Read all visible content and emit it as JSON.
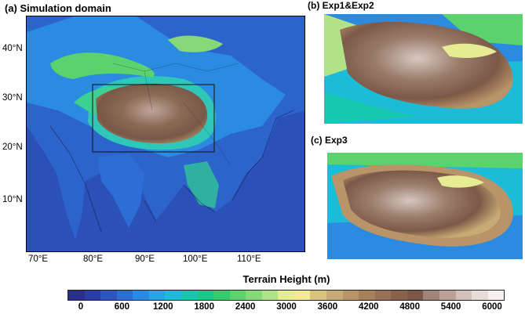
{
  "panels": {
    "a": {
      "title": "(a) Simulation domain",
      "lat_labels": [
        "40°N",
        "30°N",
        "20°N",
        "10°N"
      ],
      "lon_labels": [
        "70°E",
        "80°E",
        "90°E",
        "100°E",
        "110°E"
      ]
    },
    "b": {
      "title": "(b) Exp1&Exp2"
    },
    "c": {
      "title": "(c) Exp3"
    }
  },
  "colorbar": {
    "title": "Terrain Height (m)",
    "tick_labels": [
      "0",
      "600",
      "1200",
      "1800",
      "2400",
      "3000",
      "3600",
      "4200",
      "4800",
      "5400",
      "6000"
    ],
    "colors": [
      "#2a2e8c",
      "#2b3ea6",
      "#2c55be",
      "#2c6ed6",
      "#2a8be6",
      "#23a5e6",
      "#1cbcd8",
      "#16c8b0",
      "#18c888",
      "#32cc6c",
      "#5bd26e",
      "#86d878",
      "#b2e288",
      "#e6ec94",
      "#f4ea96",
      "#d9c47f",
      "#c7ab74",
      "#b89468",
      "#a8805c",
      "#977055",
      "#88624d",
      "#7c5848",
      "#a08478",
      "#bba198",
      "#d4c1bb",
      "#e8dcd8",
      "#f6f0ee"
    ]
  }
}
